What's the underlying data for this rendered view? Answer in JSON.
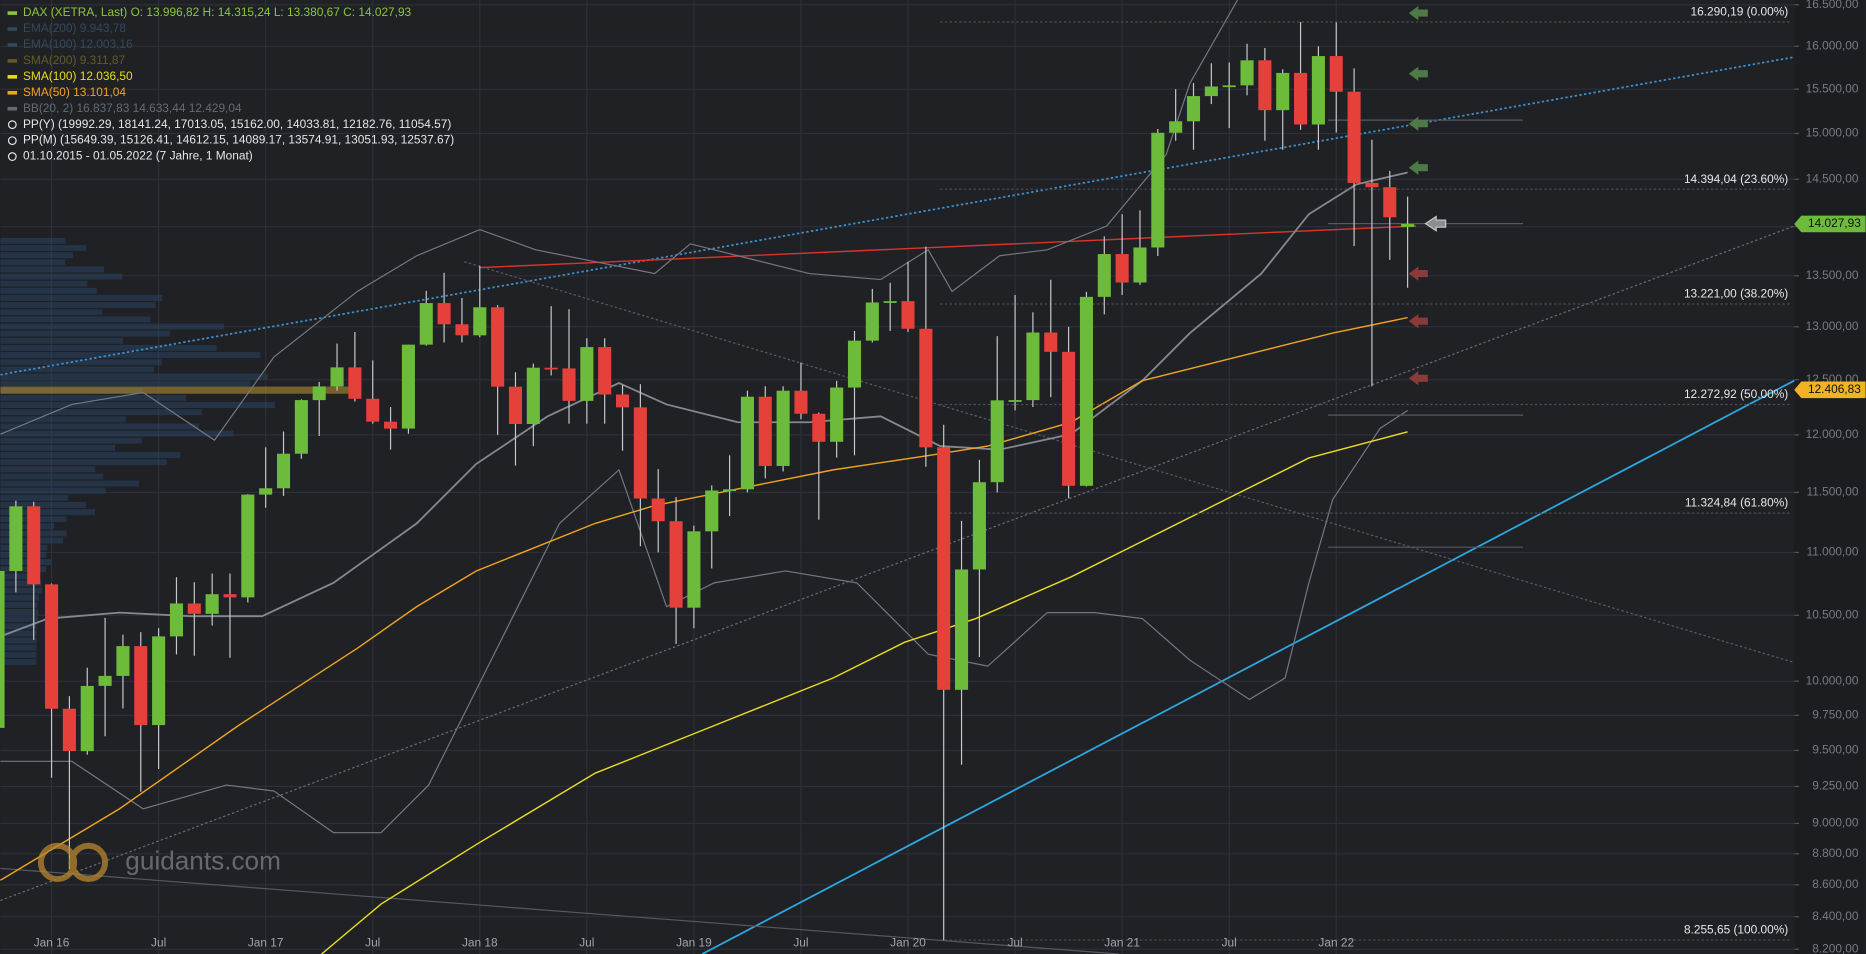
{
  "chart_data": {
    "type": "candlestick",
    "log": true,
    "grid": true,
    "up_color": "#6dbb3a",
    "down_color": "#e5403a",
    "legend": [
      {
        "text": "DAX (XETRA, Last)  O: 13.996,82  H: 14.315,24  L: 13.380,67  C: 14.027,93",
        "color": "#8cc63f"
      },
      {
        "text": "EMA(200)  9.943,78",
        "color": "#34495a"
      },
      {
        "text": "EMA(100)  12.003,16",
        "color": "#34495a"
      },
      {
        "text": "SMA(200)  9.311,87",
        "color": "#615c25"
      },
      {
        "text": "SMA(100)  12.036,50",
        "color": "#e8dc20"
      },
      {
        "text": "SMA(50)  13.101,04",
        "color": "#f0a41e"
      },
      {
        "text": "BB(20, 2)  16.837,83  14.633,44  12.429,04",
        "color": "#666a70"
      },
      {
        "text": "PP(Y)  (19992.29, 18141.24, 17013.05, 15162.00, 14033.81, 12182.76, 11054.57)",
        "color": "#e6e6e6"
      },
      {
        "text": "PP(M)  (15649.39, 15126.41, 14612.15, 14089.17, 13574.91, 13051.93, 12537.67)",
        "color": "#e6e6e6"
      },
      {
        "text": "01.10.2015 - 01.05.2022   (7 Jahre, 1 Monat)",
        "color": "#e6e6e6"
      }
    ],
    "watermark": "guidants.com",
    "categories": [
      null,
      null,
      null,
      "Jan 16",
      null,
      null,
      null,
      null,
      null,
      "Jul",
      null,
      null,
      null,
      null,
      null,
      "Jan 17",
      null,
      null,
      null,
      null,
      null,
      "Jul",
      null,
      null,
      null,
      null,
      null,
      "Jan 18",
      null,
      null,
      null,
      null,
      null,
      "Jul",
      null,
      null,
      null,
      null,
      null,
      "Jan 19",
      null,
      null,
      null,
      null,
      null,
      "Jul",
      null,
      null,
      null,
      null,
      null,
      "Jan 20",
      null,
      null,
      null,
      null,
      null,
      "Jul",
      null,
      null,
      null,
      null,
      null,
      "Jan 21",
      null,
      null,
      null,
      null,
      null,
      "Jul",
      null,
      null,
      null,
      null,
      null,
      "Jan 22",
      null,
      null,
      null,
      null
    ],
    "open": [
      9660,
      10850,
      11382,
      10743,
      9798,
      9495,
      9965,
      10039,
      10263,
      9680,
      10337,
      10592,
      10511,
      10665,
      10640,
      11481,
      11535,
      11834,
      12313,
      12438,
      12615,
      12325,
      12118,
      12056,
      12829,
      13230,
      13024,
      12918,
      13189,
      12436,
      12097,
      12612,
      12605,
      12306,
      12806,
      12364,
      12247,
      11448,
      11257,
      10559,
      11173,
      11516,
      11526,
      12344,
      11727,
      12399,
      12189,
      11939,
      12428,
      12867,
      13236,
      13249,
      12981,
      11890,
      9936,
      10862,
      11587,
      12311,
      12313,
      12945,
      12761,
      11556,
      13291,
      13719,
      13433,
      13786,
      15008,
      15136,
      15421,
      15531,
      15544,
      15835,
      15261,
      15688,
      15100,
      15885,
      15471,
      14461,
      14415,
      13996.82
    ],
    "high": [
      10900,
      11430,
      11420,
      10750,
      9890,
      10100,
      10480,
      10350,
      10370,
      10400,
      10800,
      10760,
      10830,
      10830,
      11485,
      11890,
      12030,
      12320,
      12480,
      12840,
      12950,
      12680,
      12250,
      12830,
      13350,
      13530,
      13280,
      13600,
      13210,
      12570,
      12650,
      13200,
      13170,
      12890,
      12890,
      12450,
      12460,
      11700,
      11460,
      11220,
      11560,
      11820,
      12400,
      12440,
      12440,
      12660,
      12200,
      12490,
      12960,
      13370,
      13430,
      13640,
      13795,
      12090,
      11260,
      11780,
      12910,
      13310,
      13140,
      13460,
      13000,
      13340,
      13900,
      14130,
      14170,
      15050,
      15500,
      15570,
      15800,
      15810,
      16030,
      15980,
      15730,
      16290.19,
      16000,
      16285,
      15740,
      14930,
      14590,
      14315.24
    ],
    "low": [
      9590,
      10680,
      10310,
      9310,
      8700,
      9470,
      9600,
      9800,
      9214,
      9370,
      10200,
      10190,
      10420,
      10175,
      10600,
      11370,
      11470,
      11790,
      11990,
      12400,
      12300,
      12100,
      11870,
      12010,
      12820,
      12850,
      12850,
      12900,
      12000,
      11730,
      11900,
      12540,
      12100,
      12100,
      12100,
      11860,
      11050,
      11000,
      10280,
      10400,
      10870,
      11300,
      11500,
      11620,
      11680,
      12140,
      11270,
      11800,
      11820,
      12850,
      12960,
      12950,
      11720,
      8255.65,
      9400,
      10180,
      11500,
      12220,
      12250,
      12340,
      11450,
      11550,
      13120,
      13310,
      13410,
      13700,
      14920,
      14820,
      15330,
      15060,
      15430,
      14920,
      14820,
      15040,
      14820,
      15010,
      13800,
      12439,
      13660,
      13380.67
    ],
    "close": [
      10850,
      11382,
      10743,
      9798,
      9495,
      9965,
      10039,
      10263,
      9680,
      10337,
      10592,
      10511,
      10665,
      10640,
      11481,
      11535,
      11834,
      12313,
      12438,
      12615,
      12325,
      12118,
      12056,
      12829,
      13230,
      13024,
      12918,
      13189,
      12436,
      12097,
      12612,
      12605,
      12306,
      12806,
      12364,
      12247,
      11448,
      11257,
      10559,
      11173,
      11516,
      11526,
      12344,
      11727,
      12399,
      12189,
      11939,
      12428,
      12867,
      13236,
      13249,
      12981,
      11890,
      9936,
      10862,
      11587,
      12311,
      12313,
      12945,
      12761,
      11556,
      13291,
      13719,
      13433,
      13786,
      15008,
      15136,
      15421,
      15531,
      15544,
      15835,
      15261,
      15688,
      15100,
      15885,
      15471,
      14461,
      14415,
      14098,
      14027.93
    ],
    "ylim": [
      8171,
      16558
    ],
    "yticks": [
      {
        "value": 8200,
        "label": "8.200,00"
      },
      {
        "value": 8400,
        "label": "8.400,00"
      },
      {
        "value": 8600,
        "label": "8.600,00"
      },
      {
        "value": 8800,
        "label": "8.800,00"
      },
      {
        "value": 9000,
        "label": "9.000,00"
      },
      {
        "value": 9250,
        "label": "9.250,00"
      },
      {
        "value": 9500,
        "label": "9.500,00"
      },
      {
        "value": 9750,
        "label": "9.750,00"
      },
      {
        "value": 10000,
        "label": "10.000,00"
      },
      {
        "value": 10500,
        "label": "10.500,00"
      },
      {
        "value": 11000,
        "label": "11.000,00"
      },
      {
        "value": 11500,
        "label": "11.500,00"
      },
      {
        "value": 12000,
        "label": "12.000,00"
      },
      {
        "value": 12500,
        "label": "12.500,00"
      },
      {
        "value": 13000,
        "label": "13.000,00"
      },
      {
        "value": 13500,
        "label": "13.500,00"
      },
      {
        "value": 14000,
        "label": "14.000,00"
      },
      {
        "value": 14500,
        "label": "14.500,00"
      },
      {
        "value": 15000,
        "label": "15.000,00"
      },
      {
        "value": 15500,
        "label": "15.500,00"
      },
      {
        "value": 16000,
        "label": "16.000,00"
      },
      {
        "value": 16500,
        "label": "16.500,00"
      }
    ],
    "fib_levels": [
      {
        "value": 16290.19,
        "label": "16.290,19 (0.00%)"
      },
      {
        "value": 14394.04,
        "label": "14.394,04 (23.60%)"
      },
      {
        "value": 13221.0,
        "label": "13.221,00 (38.20%)"
      },
      {
        "value": 12272.92,
        "label": "12.272,92 (50.00%)"
      },
      {
        "value": 11324.84,
        "label": "11.324,84 (61.80%)"
      },
      {
        "value": 8255.65,
        "label": "8.255,65 (100.00%)"
      }
    ],
    "price_labels": [
      {
        "value": 14027.93,
        "label": "14.027,93",
        "color": "#6dbb3a"
      },
      {
        "value": 12406.83,
        "label": "12.406,83",
        "color": "#f0b323"
      }
    ]
  }
}
